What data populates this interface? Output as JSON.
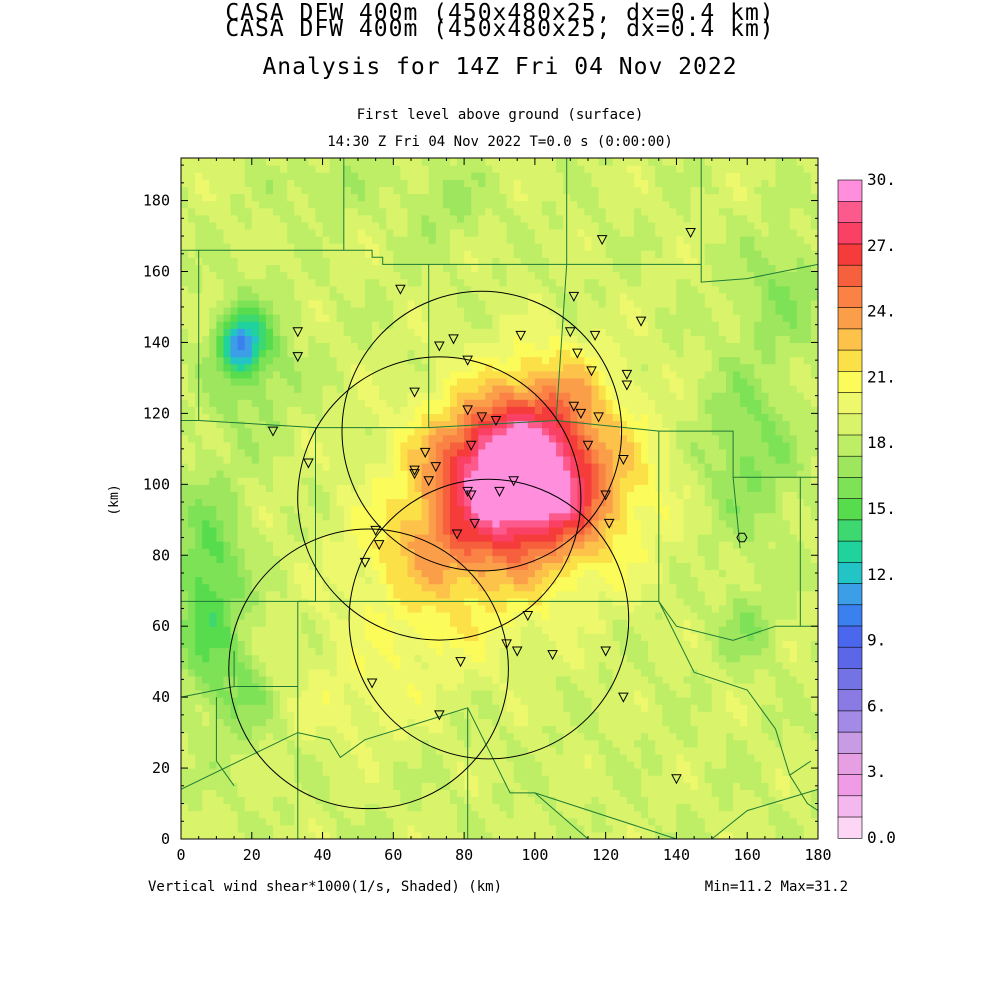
{
  "header": {
    "title_line1": "CASA DFW 400m (450x480x25, dx=0.4 km)",
    "title_line2": "Analysis for 14Z Fri 04 Nov 2022",
    "subtitle_line1": "First level above ground (surface)",
    "subtitle_line2": "14:30 Z Fri 04 Nov 2022   T=0.0 s (0:00:00)"
  },
  "axes": {
    "x_ticks": [
      "0",
      "20",
      "40",
      "60",
      "80",
      "100",
      "120",
      "140",
      "160",
      "180"
    ],
    "y_ticks": [
      "0",
      "20",
      "40",
      "60",
      "80",
      "100",
      "120",
      "140",
      "160",
      "180"
    ],
    "y_label": "(km)",
    "x_range": [
      0,
      180
    ],
    "y_range": [
      0,
      192
    ]
  },
  "footer": {
    "left": "Vertical wind shear*1000(1/s, Shaded)  (km)",
    "right": "Min=11.2 Max=31.2"
  },
  "colorbar": {
    "labels": [
      "30.",
      "27.",
      "24.",
      "21.",
      "18.",
      "15.",
      "12.",
      "9.",
      "6.",
      "3.",
      "0.0"
    ],
    "colors": [
      "#fdd5f5",
      "#f5b8ee",
      "#ef9be5",
      "#e59fe2",
      "#c79ce4",
      "#a38ae6",
      "#8a7ae3",
      "#7373e3",
      "#5b67e8",
      "#4a67ee",
      "#3a80ef",
      "#3c9ee6",
      "#22c4c6",
      "#20d39c",
      "#3ed870",
      "#57dc4d",
      "#7ee257",
      "#9ee65e",
      "#bdee66",
      "#d9f46a",
      "#eef86c",
      "#fbfb5a",
      "#fce048",
      "#fcc24a",
      "#fb9e4a",
      "#fa8244",
      "#f7603c",
      "#f53c3a",
      "#fa4064",
      "#fc5a8c",
      "#ff8edd"
    ]
  },
  "chart_data": {
    "type": "heatmap",
    "field": "Vertical wind shear*1000(1/s, Shaded)",
    "units": "km",
    "value_min": 11.2,
    "value_max": 31.2,
    "radars": [
      {
        "x": 85,
        "y": 115,
        "r": 39.5
      },
      {
        "x": 73,
        "y": 96,
        "r": 40
      },
      {
        "x": 53,
        "y": 48,
        "r": 39.5
      },
      {
        "x": 87,
        "y": 62,
        "r": 39.5
      }
    ],
    "hexagon_marker": {
      "x": 158.5,
      "y": 85
    },
    "stations": [
      [
        119,
        169
      ],
      [
        144,
        171
      ],
      [
        111,
        153
      ],
      [
        62,
        155
      ],
      [
        130,
        146
      ],
      [
        33,
        143
      ],
      [
        33,
        136
      ],
      [
        77,
        141
      ],
      [
        73,
        139
      ],
      [
        96,
        142
      ],
      [
        110,
        143
      ],
      [
        117,
        142
      ],
      [
        81,
        135
      ],
      [
        112,
        137
      ],
      [
        116,
        132
      ],
      [
        126,
        131
      ],
      [
        126,
        128
      ],
      [
        66,
        126
      ],
      [
        81,
        121
      ],
      [
        85,
        119
      ],
      [
        89,
        118
      ],
      [
        111,
        122
      ],
      [
        113,
        120
      ],
      [
        118,
        119
      ],
      [
        26,
        115
      ],
      [
        36,
        106
      ],
      [
        82,
        111
      ],
      [
        115,
        111
      ],
      [
        125,
        107
      ],
      [
        69,
        109
      ],
      [
        66,
        104
      ],
      [
        66,
        103
      ],
      [
        72,
        105
      ],
      [
        70,
        101
      ],
      [
        90,
        98
      ],
      [
        94,
        101
      ],
      [
        81,
        98
      ],
      [
        82,
        97
      ],
      [
        120,
        97
      ],
      [
        83,
        89
      ],
      [
        121,
        89
      ],
      [
        78,
        86
      ],
      [
        55,
        87
      ],
      [
        56,
        83
      ],
      [
        52,
        78
      ],
      [
        98,
        63
      ],
      [
        92,
        55
      ],
      [
        95,
        53
      ],
      [
        105,
        52
      ],
      [
        120,
        53
      ],
      [
        79,
        50
      ],
      [
        54,
        44
      ],
      [
        125,
        40
      ],
      [
        73,
        35
      ],
      [
        140,
        17
      ]
    ],
    "shear_cells": [
      {
        "x": 97,
        "y": 100,
        "sx": 28,
        "sy": 24,
        "a": 11
      },
      {
        "x": 92,
        "y": 108,
        "sx": 17,
        "sy": 15,
        "a": 4
      },
      {
        "x": 100,
        "y": 98,
        "sx": 11,
        "sy": 10,
        "a": 2.5
      },
      {
        "x": 70,
        "y": 82,
        "sx": 22,
        "sy": 13,
        "a": 2.5
      },
      {
        "x": 106,
        "y": 128,
        "sx": 16,
        "sy": 14,
        "a": 2.5
      },
      {
        "x": 72,
        "y": 62,
        "sx": 26,
        "sy": 16,
        "a": 2
      },
      {
        "x": 50,
        "y": 40,
        "sx": 22,
        "sy": 14,
        "a": 1.2
      },
      {
        "x": 17,
        "y": 140,
        "sx": 6,
        "sy": 8,
        "a": -6.5
      },
      {
        "x": 20,
        "y": 135,
        "sx": 11,
        "sy": 18,
        "a": -2.5
      },
      {
        "x": 8,
        "y": 70,
        "sx": 10,
        "sy": 28,
        "a": -4
      },
      {
        "x": 18,
        "y": 40,
        "sx": 9,
        "sy": 12,
        "a": -2
      },
      {
        "x": 160,
        "y": 110,
        "sx": 14,
        "sy": 24,
        "a": -2.5
      },
      {
        "x": 170,
        "y": 155,
        "sx": 12,
        "sy": 16,
        "a": -2
      },
      {
        "x": 160,
        "y": 60,
        "sx": 8,
        "sy": 10,
        "a": -2
      },
      {
        "x": 75,
        "y": 180,
        "sx": 10,
        "sy": 10,
        "a": -1.5
      },
      {
        "x": 40,
        "y": 185,
        "sx": 12,
        "sy": 8,
        "a": -1.2
      }
    ],
    "county_lines": [
      [
        [
          0,
          166
        ],
        [
          5,
          166
        ],
        [
          5,
          118
        ],
        [
          0,
          118
        ]
      ],
      [
        [
          5,
          166
        ],
        [
          54,
          166
        ],
        [
          54,
          164
        ],
        [
          57,
          164
        ],
        [
          57,
          162
        ],
        [
          70,
          162
        ],
        [
          70,
          162
        ]
      ],
      [
        [
          46,
          192
        ],
        [
          46,
          166
        ]
      ],
      [
        [
          70,
          162
        ],
        [
          70,
          162
        ],
        [
          109,
          162
        ]
      ],
      [
        [
          109,
          192
        ],
        [
          109,
          162
        ]
      ],
      [
        [
          109,
          162
        ],
        [
          147,
          162
        ]
      ],
      [
        [
          147,
          192
        ],
        [
          147,
          157
        ],
        [
          160,
          158
        ],
        [
          180,
          162
        ]
      ],
      [
        [
          109,
          162
        ],
        [
          106,
          118
        ]
      ],
      [
        [
          5,
          118
        ],
        [
          38,
          116
        ],
        [
          38,
          67
        ],
        [
          0,
          67
        ]
      ],
      [
        [
          38,
          116
        ],
        [
          70,
          116
        ],
        [
          70,
          162
        ]
      ],
      [
        [
          70,
          116
        ],
        [
          106,
          118
        ],
        [
          135,
          115
        ],
        [
          156,
          115
        ],
        [
          156,
          102
        ],
        [
          180,
          102
        ]
      ],
      [
        [
          135,
          115
        ],
        [
          135,
          67
        ],
        [
          33,
          67
        ]
      ],
      [
        [
          33,
          67
        ],
        [
          33,
          0
        ]
      ],
      [
        [
          0,
          40
        ],
        [
          15,
          43
        ],
        [
          33,
          43
        ]
      ],
      [
        [
          15,
          43
        ],
        [
          15,
          53
        ]
      ],
      [
        [
          0,
          14
        ],
        [
          33,
          30
        ],
        [
          42,
          28
        ],
        [
          45,
          23
        ],
        [
          52,
          28
        ],
        [
          65,
          32
        ],
        [
          81,
          37
        ],
        [
          93,
          13
        ],
        [
          100,
          13
        ],
        [
          140,
          0
        ]
      ],
      [
        [
          81,
          37
        ],
        [
          81,
          0
        ]
      ],
      [
        [
          135,
          67
        ],
        [
          140,
          60
        ],
        [
          156,
          56
        ],
        [
          168,
          60
        ],
        [
          180,
          60
        ]
      ],
      [
        [
          175,
          102
        ],
        [
          175,
          60
        ]
      ],
      [
        [
          145,
          47
        ],
        [
          160,
          42
        ],
        [
          168,
          31
        ],
        [
          172,
          18
        ],
        [
          177,
          10
        ],
        [
          180,
          8
        ]
      ],
      [
        [
          150,
          0
        ],
        [
          160,
          8
        ],
        [
          170,
          11
        ],
        [
          180,
          14
        ]
      ],
      [
        [
          10,
          40
        ],
        [
          10,
          22
        ],
        [
          15,
          15
        ]
      ],
      [
        [
          172,
          18
        ],
        [
          178,
          22
        ]
      ],
      [
        [
          100,
          13
        ],
        [
          115,
          0
        ]
      ],
      [
        [
          135,
          67
        ],
        [
          145,
          47
        ]
      ],
      [
        [
          156,
          102
        ],
        [
          158,
          82
        ]
      ]
    ]
  }
}
